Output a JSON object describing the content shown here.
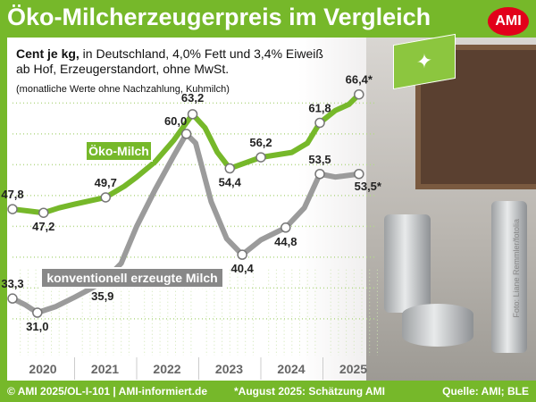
{
  "header": {
    "title": "Öko-Milcherzeugerpreis im Vergleich",
    "logo": "AMI"
  },
  "subtitle": {
    "bold": "Cent je kg,",
    "line1": " in Deutschland, 4,0% Fett und 3,4% Eiweiß",
    "line2": "ab Hof, Erzeugerstandort, ohne MwSt.",
    "line3": "(monatliche Werte ohne Nachzahlung, Kuhmilch)"
  },
  "footer": {
    "left": "© AMI 2025/OL-I-101 | AMI-informiert.de",
    "center": "*August 2025: Schätzung AMI",
    "right": "Quelle: AMI; BLE"
  },
  "photo_credit": "Foto: Liane Remmler/fotolia",
  "colors": {
    "oko": "#76b82a",
    "conv": "#9b9b9b",
    "bg": "#76b82a"
  },
  "chart_data": {
    "type": "line",
    "title": "Öko-Milcherzeugerpreis im Vergleich",
    "ylabel": "Cent je kg",
    "x_ticks": [
      "2020",
      "2021",
      "2022",
      "2023",
      "2024",
      "2025"
    ],
    "xlim": [
      2020,
      2025.67
    ],
    "ylim": [
      27,
      68
    ],
    "series": [
      {
        "name": "Öko-Milch",
        "points": [
          [
            2020.0,
            47.8
          ],
          [
            2020.25,
            47.5
          ],
          [
            2020.5,
            47.2
          ],
          [
            2020.75,
            48.0
          ],
          [
            2021.0,
            48.6
          ],
          [
            2021.5,
            49.7
          ],
          [
            2021.8,
            51.5
          ],
          [
            2022.0,
            53.0
          ],
          [
            2022.3,
            55.5
          ],
          [
            2022.6,
            59.0
          ],
          [
            2022.9,
            63.2
          ],
          [
            2023.1,
            61.0
          ],
          [
            2023.3,
            57.0
          ],
          [
            2023.5,
            54.4
          ],
          [
            2023.75,
            55.3
          ],
          [
            2024.0,
            56.2
          ],
          [
            2024.5,
            57.0
          ],
          [
            2024.75,
            58.5
          ],
          [
            2024.95,
            61.8
          ],
          [
            2025.2,
            63.8
          ],
          [
            2025.42,
            64.8
          ],
          [
            2025.58,
            66.4
          ]
        ],
        "labels": [
          {
            "x": 2020.0,
            "text": "47,8"
          },
          {
            "x": 2020.5,
            "text": "47,2"
          },
          {
            "x": 2021.5,
            "text": "49,7"
          },
          {
            "x": 2022.9,
            "text": "63,2"
          },
          {
            "x": 2023.5,
            "text": "54,4"
          },
          {
            "x": 2024.0,
            "text": "56,2"
          },
          {
            "x": 2024.95,
            "text": "61,8"
          },
          {
            "x": 2025.58,
            "text": "66,4*"
          }
        ]
      },
      {
        "name": "konventionell erzeugte Milch",
        "points": [
          [
            2020.0,
            33.3
          ],
          [
            2020.2,
            32.3
          ],
          [
            2020.4,
            31.0
          ],
          [
            2020.7,
            32.0
          ],
          [
            2021.0,
            33.5
          ],
          [
            2021.45,
            35.9
          ],
          [
            2021.75,
            39.0
          ],
          [
            2022.0,
            45.0
          ],
          [
            2022.3,
            51.0
          ],
          [
            2022.6,
            56.5
          ],
          [
            2022.8,
            60.0
          ],
          [
            2022.95,
            58.5
          ],
          [
            2023.2,
            49.0
          ],
          [
            2023.45,
            43.0
          ],
          [
            2023.7,
            40.4
          ],
          [
            2024.0,
            42.8
          ],
          [
            2024.4,
            44.8
          ],
          [
            2024.7,
            48.0
          ],
          [
            2024.95,
            53.5
          ],
          [
            2025.2,
            53.0
          ],
          [
            2025.58,
            53.5
          ]
        ],
        "labels": [
          {
            "x": 2020.0,
            "text": "33,3"
          },
          {
            "x": 2020.4,
            "text": "31,0"
          },
          {
            "x": 2021.45,
            "text": "35,9"
          },
          {
            "x": 2022.8,
            "text": "60,0"
          },
          {
            "x": 2023.7,
            "text": "40,4"
          },
          {
            "x": 2024.4,
            "text": "44,8"
          },
          {
            "x": 2024.95,
            "text": "53,5"
          },
          {
            "x": 2025.58,
            "text": "53,5*"
          }
        ]
      }
    ]
  }
}
